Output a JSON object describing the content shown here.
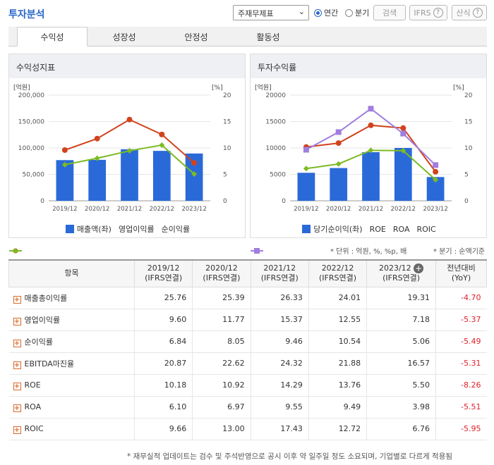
{
  "header": {
    "title": "투자분석",
    "select_value": "주재무제표",
    "radio_annual": "연간",
    "radio_quarter": "분기",
    "search_label": "검색",
    "ifrs_label": "IFRS",
    "formula_label": "산식",
    "help_glyph": "?"
  },
  "tabs": [
    "수익성",
    "성장성",
    "안정성",
    "활동성"
  ],
  "left_chart": {
    "panel_title": "수익성지표",
    "left_unit": "[억원]",
    "right_unit": "[%]",
    "legend": [
      "매출액(좌)",
      "영업이익률",
      "순이익률"
    ]
  },
  "right_chart": {
    "panel_title": "투자수익률",
    "left_unit": "[억원]",
    "right_unit": "[%]",
    "legend": [
      "당기순이익(좌)",
      "ROE",
      "ROA",
      "ROIC"
    ]
  },
  "chart_data": [
    {
      "type": "bar",
      "title": "수익성지표",
      "categories": [
        "2019/12",
        "2020/12",
        "2021/12",
        "2022/12",
        "2023/12"
      ],
      "left_ticks": [
        "0",
        "50,000",
        "100,000",
        "150,000",
        "200,000"
      ],
      "right_ticks": [
        "0",
        "5",
        "10",
        "15",
        "20"
      ],
      "ylim": [
        0,
        200000
      ],
      "y2lim": [
        0,
        20
      ],
      "bar_series": {
        "name": "매출액(좌)",
        "values": [
          77000,
          77500,
          97500,
          94500,
          89500
        ],
        "color": "#2a6ad8"
      },
      "line_series": [
        {
          "name": "영업이익률",
          "values": [
            9.6,
            11.77,
            15.37,
            12.55,
            7.18
          ],
          "color": "#d1431d"
        },
        {
          "name": "순이익률",
          "values": [
            6.84,
            8.05,
            9.46,
            10.54,
            5.06
          ],
          "color": "#7cbb23"
        }
      ]
    },
    {
      "type": "bar",
      "title": "투자수익률",
      "categories": [
        "2019/12",
        "2020/12",
        "2021/12",
        "2022/12",
        "2023/12"
      ],
      "left_ticks": [
        "0",
        "5000",
        "10000",
        "15000",
        "20000"
      ],
      "right_ticks": [
        "0",
        "5",
        "10",
        "15",
        "20"
      ],
      "ylim": [
        0,
        20000
      ],
      "y2lim": [
        0,
        20
      ],
      "bar_series": {
        "name": "당기순이익(좌)",
        "values": [
          5300,
          6200,
          9200,
          10000,
          4500
        ],
        "color": "#2a6ad8"
      },
      "line_series": [
        {
          "name": "ROE",
          "values": [
            10.18,
            10.92,
            14.29,
            13.76,
            5.5
          ],
          "color": "#d1431d"
        },
        {
          "name": "ROA",
          "values": [
            6.1,
            6.97,
            9.55,
            9.49,
            3.98
          ],
          "color": "#7cbb23"
        },
        {
          "name": "ROIC",
          "values": [
            9.66,
            13.0,
            17.43,
            12.72,
            6.76
          ],
          "color": "#a07ee0"
        }
      ]
    }
  ],
  "notes": {
    "unit": "* 단위 : 억원, %, %p, 배",
    "quarter": "* 분기 : 순액기준"
  },
  "table": {
    "headers": [
      [
        "항목",
        ""
      ],
      [
        "2019/12",
        "(IFRS연결)"
      ],
      [
        "2020/12",
        "(IFRS연결)"
      ],
      [
        "2021/12",
        "(IFRS연결)"
      ],
      [
        "2022/12",
        "(IFRS연결)"
      ],
      [
        "2023/12",
        "(IFRS연결)"
      ],
      [
        "전년대비",
        "(YoY)"
      ]
    ],
    "rows": [
      {
        "label": "매출총이익률",
        "values": [
          "25.76",
          "25.39",
          "26.33",
          "24.01",
          "19.31"
        ],
        "yoy": "-4.70"
      },
      {
        "label": "영업이익률",
        "values": [
          "9.60",
          "11.77",
          "15.37",
          "12.55",
          "7.18"
        ],
        "yoy": "-5.37"
      },
      {
        "label": "순이익률",
        "values": [
          "6.84",
          "8.05",
          "9.46",
          "10.54",
          "5.06"
        ],
        "yoy": "-5.49"
      },
      {
        "label": "EBITDA마진율",
        "values": [
          "20.87",
          "22.62",
          "24.32",
          "21.88",
          "16.57"
        ],
        "yoy": "-5.31"
      },
      {
        "label": "ROE",
        "values": [
          "10.18",
          "10.92",
          "14.29",
          "13.76",
          "5.50"
        ],
        "yoy": "-8.26"
      },
      {
        "label": "ROA",
        "values": [
          "6.10",
          "6.97",
          "9.55",
          "9.49",
          "3.98"
        ],
        "yoy": "-5.51"
      },
      {
        "label": "ROIC",
        "values": [
          "9.66",
          "13.00",
          "17.43",
          "12.72",
          "6.76"
        ],
        "yoy": "-5.95"
      }
    ]
  },
  "footnote": "* 재무실적 업데이트는 검수 및 주석반영으로 공시 이후 약 일주일 정도 소요되며, 기업별로 다르게 적용됨"
}
